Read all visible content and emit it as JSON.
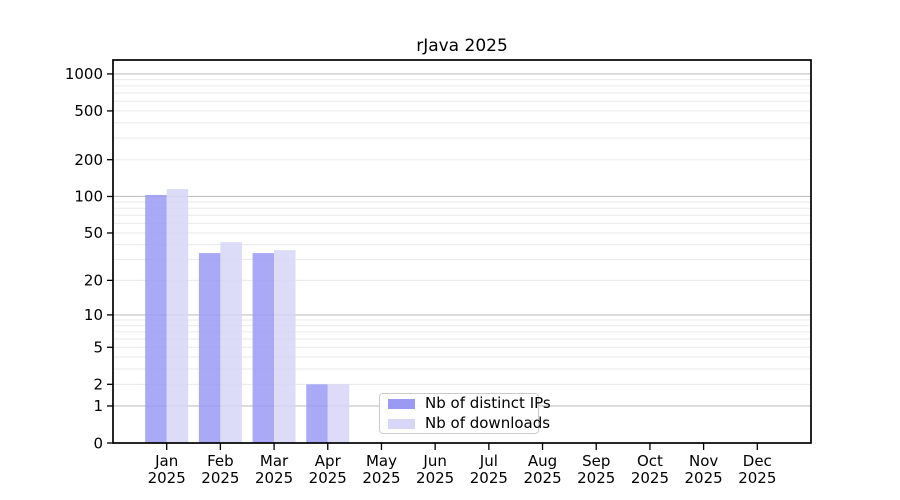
{
  "chart_data": {
    "type": "bar",
    "title": "rJava 2025",
    "categories": [
      "Jan 2025",
      "Feb 2025",
      "Mar 2025",
      "Apr 2025",
      "May 2025",
      "Jun 2025",
      "Jul 2025",
      "Aug 2025",
      "Sep 2025",
      "Oct 2025",
      "Nov 2025",
      "Dec 2025"
    ],
    "series": [
      {
        "name": "Nb of distinct IPs",
        "color": "#9a9af5",
        "values": [
          103,
          34,
          34,
          2,
          0,
          0,
          0,
          0,
          0,
          0,
          0,
          0
        ]
      },
      {
        "name": "Nb of downloads",
        "color": "#d6d6f7",
        "values": [
          115,
          42,
          36,
          2,
          0,
          0,
          0,
          0,
          0,
          0,
          0,
          0
        ]
      }
    ],
    "xlabel": "",
    "ylabel": "",
    "yscale": "log10(1+x)",
    "yticks": [
      0,
      1,
      2,
      5,
      10,
      20,
      50,
      100,
      200,
      500,
      1000
    ],
    "ylim": [
      0,
      1300
    ],
    "grid": "horizontal, major and minor log gridlines",
    "legend_position": "lower center inside plot"
  },
  "colors": {
    "background": "#ffffff",
    "bar_distinct_ips": "#9a9af5",
    "bar_downloads": "#d6d6f7",
    "major_grid": "#c2c2c2",
    "minor_grid": "#eaeaea",
    "spine": "#000000",
    "tick_text": "#000000",
    "legend_border": "#cccccc"
  }
}
